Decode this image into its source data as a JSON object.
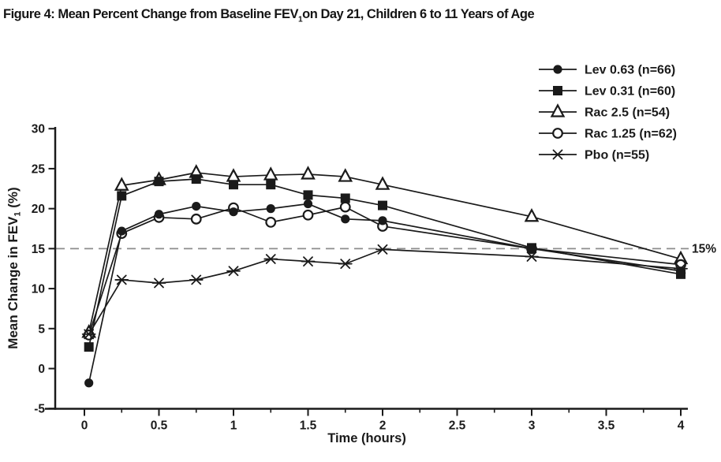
{
  "header": {
    "title_prefix": "Figure 4: Mean Percent Change from Baseline FEV",
    "title_sub": "1",
    "title_suffix": "on Day 21, Children 6 to 11 Years of Age"
  },
  "chart_data": {
    "type": "line",
    "title": "Figure 4: Mean Percent Change from Baseline FEV1 on Day 21, Children 6 to 11 Years of Age",
    "xlabel": "Time (hours)",
    "ylabel": "Mean Change in FEV1 (%)",
    "ylabel_parts": {
      "pre": "Mean Change in FEV",
      "sub": "1",
      "post": " (%)"
    },
    "xlim": [
      0,
      4
    ],
    "ylim": [
      -5,
      30
    ],
    "x_major_ticks": [
      0,
      0.5,
      1,
      1.5,
      2,
      2.5,
      3,
      3.5,
      4
    ],
    "x_major_tick_labels": [
      "0",
      "0.5",
      "1",
      "1.5",
      "2",
      "2.5",
      "3",
      "3.5",
      "4"
    ],
    "x_minor_ticks": [
      0.25,
      0.75,
      1.25,
      1.75,
      2.25,
      2.75,
      3.25,
      3.75
    ],
    "y_ticks": [
      -5,
      0,
      5,
      10,
      15,
      20,
      25,
      30
    ],
    "grid": false,
    "legend_position": "top-right",
    "reference_line": {
      "y": 15,
      "label": "15%",
      "style": "dashed",
      "color": "#8c8c8c"
    },
    "line_color": "#1a1a1a",
    "x": [
      0.03,
      0.25,
      0.5,
      0.75,
      1,
      1.25,
      1.5,
      1.75,
      2,
      3,
      4
    ],
    "series": [
      {
        "name": "Lev 0.63 (n=66)",
        "marker": "filled-circle",
        "values": [
          -1.8,
          17.2,
          19.3,
          20.3,
          19.6,
          20.0,
          20.6,
          18.7,
          18.5,
          15.0,
          12.2
        ]
      },
      {
        "name": "Lev 0.31 (n=60)",
        "marker": "filled-square",
        "values": [
          2.7,
          21.6,
          23.4,
          23.7,
          23.0,
          23.0,
          21.7,
          21.3,
          20.4,
          15.1,
          11.8
        ]
      },
      {
        "name": "Rac 2.5 (n=54)",
        "marker": "open-triangle",
        "values": [
          4.5,
          22.9,
          23.6,
          24.5,
          24.0,
          24.2,
          24.3,
          24.0,
          23.0,
          19.0,
          13.7
        ]
      },
      {
        "name": "Rac 1.25 (n=62)",
        "marker": "open-circle",
        "values": [
          4.2,
          16.9,
          18.9,
          18.7,
          20.1,
          18.3,
          19.2,
          20.2,
          17.8,
          15.0,
          13.0
        ]
      },
      {
        "name": "Pbo (n=55)",
        "marker": "asterisk",
        "values": [
          4.3,
          11.1,
          10.7,
          11.1,
          12.2,
          13.7,
          13.4,
          13.1,
          14.9,
          14.0,
          12.5
        ]
      }
    ]
  }
}
